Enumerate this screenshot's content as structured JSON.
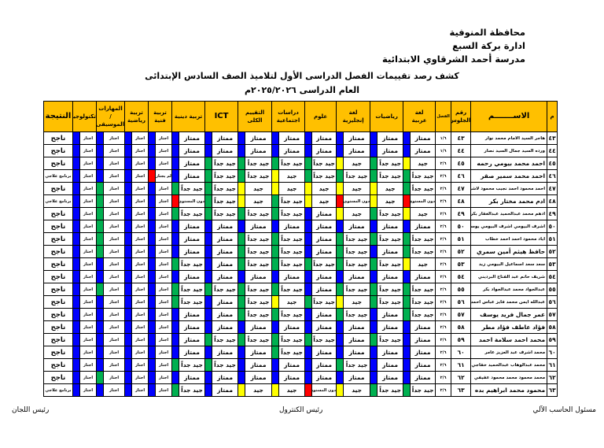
{
  "header": {
    "governorate": "محافظة المنوفية",
    "administration": "ادارة بركة السبع",
    "school": "مدرسة أحمد الشرقاوي الابتدائية"
  },
  "title": "كشف رصد تقييمات الفصل الدراسى الأول لتلاميذ الصف السادس الإبتدائى",
  "subtitle": "العام الدراسى ٢٠٢٥/٢٠٢٦م",
  "colors": {
    "b": "#0000FF",
    "g": "#00B050",
    "y": "#FFFF00",
    "r": "#FF0000",
    "header": "#FFC000"
  },
  "grade_colors": {
    "ممتاز": "b",
    "جيد جداً": "g",
    "جيد": "y",
    "دون المستوى": "r"
  },
  "columns": {
    "num": "م",
    "name": "الاســـــــم",
    "seat": "رقم\nالجلوس",
    "class": "الفصل",
    "arabic": "لغة\nعربية",
    "math": "رياضيات",
    "english": "لغة\nإنجليزية",
    "science": "علوم",
    "social": "دراسات\nاجتماعية",
    "overall": "التقييم\nالكلى",
    "ict": "ICT",
    "religion": "تربية دينية",
    "art": "تربية\nفنية",
    "pe": "تربية\nرياضية",
    "music": "المهارات /\nالموسيقى",
    "tech": "تكنولوجيا",
    "result": "النتيجة"
  },
  "rows": [
    {
      "num": "٤٣",
      "name": "هاجر السيد الامام محمد نوار",
      "seat": "٤٣",
      "class": "١/٦",
      "grades": [
        "ممتاز",
        "ممتاز",
        "ممتاز",
        "ممتاز",
        "ممتاز",
        "ممتاز",
        "ممتاز",
        "ممتاز"
      ],
      "activities": [
        "اجتاز",
        "اجتاز",
        "اجتاز",
        "اجتاز"
      ],
      "activity_colors": [
        "b",
        "b",
        "b",
        "b"
      ],
      "result": "ناجح"
    },
    {
      "num": "٤٤",
      "name": "ورده السيد جمال السيد نصار",
      "seat": "٤٤",
      "class": "١/٦",
      "grades": [
        "ممتاز",
        "ممتاز",
        "ممتاز",
        "ممتاز",
        "ممتاز",
        "ممتاز",
        "ممتاز",
        "ممتاز"
      ],
      "activities": [
        "اجتاز",
        "اجتاز",
        "اجتاز",
        "اجتاز"
      ],
      "activity_colors": [
        "b",
        "b",
        "b",
        "b"
      ],
      "result": "ناجح"
    },
    {
      "num": "٤٥",
      "name": "احمد محمد بيومي رحمه",
      "seat": "٤٥",
      "class": "٢/٦",
      "grades": [
        "جيد",
        "جيد جداً",
        "جيد",
        "جيد جداً",
        "جيد جداً",
        "جيد جداً",
        "جيد جداً",
        "ممتاز"
      ],
      "activities": [
        "اجتاز",
        "اجتاز",
        "اجتاز",
        "اجتاز"
      ],
      "activity_colors": [
        "b",
        "b",
        "b",
        "b"
      ],
      "result": "ناجح"
    },
    {
      "num": "٤٦",
      "name": "احمد محمد سمير صقر",
      "seat": "٤٦",
      "class": "٢/٦",
      "grades": [
        "جيد جداً",
        "جيد جداً",
        "جيد جداً",
        "جيد جداً",
        "جيد",
        "جيد جداً",
        "جيد جداً",
        "ممتاز"
      ],
      "activities": [
        "لم يجتاز",
        "اجتاز",
        "اجتاز",
        "اجتاز"
      ],
      "activity_colors": [
        "r",
        "b",
        "b",
        "b"
      ],
      "result": "برنامج علاجي"
    },
    {
      "num": "٤٧",
      "name": "احمد محمود احمد نجيب محمود لاشين",
      "seat": "٤٧",
      "class": "٢/٦",
      "grades": [
        "جيد جداً",
        "جيد",
        "جيد",
        "جيد",
        "جيد",
        "جيد",
        "جيد جداً",
        "جيد جداً"
      ],
      "activities": [
        "اجتاز",
        "اجتاز",
        "اجتاز",
        "اجتاز"
      ],
      "activity_colors": [
        "b",
        "b",
        "g",
        "b"
      ],
      "result": "ناجح"
    },
    {
      "num": "٤٨",
      "name": "ادم محمد مختار بكر",
      "seat": "٤٨",
      "class": "٢/٦",
      "grades": [
        "دون المستوى",
        "جيد",
        "دون المستوى",
        "جيد",
        "جيد جداً",
        "جيد",
        "جيد جداً",
        "دون المستوى"
      ],
      "activities": [
        "اجتاز",
        "اجتاز",
        "اجتاز",
        "اجتاز"
      ],
      "activity_colors": [
        "b",
        "b",
        "g",
        "b"
      ],
      "result": "برنامج علاجي"
    },
    {
      "num": "٤٩",
      "name": "ادهم محمد عبدالحميد عبدالغفار بكر",
      "seat": "٤٩",
      "class": "٢/٦",
      "grades": [
        "جيد",
        "جيد جداً",
        "جيد",
        "ممتاز",
        "جيد جداً",
        "جيد جداً",
        "جيد جداً",
        "جيد جداً"
      ],
      "activities": [
        "اجتاز",
        "اجتاز",
        "اجتاز",
        "اجتاز"
      ],
      "activity_colors": [
        "b",
        "b",
        "g",
        "b"
      ],
      "result": "ناجح"
    },
    {
      "num": "٥٠",
      "name": "اشرف البيومي اشرف البيومي يوسف",
      "seat": "٥٠",
      "class": "٢/٦",
      "grades": [
        "ممتاز",
        "ممتاز",
        "ممتاز",
        "ممتاز",
        "ممتاز",
        "ممتاز",
        "ممتاز",
        "ممتاز"
      ],
      "activities": [
        "اجتاز",
        "اجتاز",
        "اجتاز",
        "اجتاز"
      ],
      "activity_colors": [
        "b",
        "b",
        "g",
        "b"
      ],
      "result": "ناجح"
    },
    {
      "num": "٥١",
      "name": "اياد محمود احمد احمد خطاب",
      "seat": "٥١",
      "class": "٢/٦",
      "grades": [
        "جيد جداً",
        "جيد جداً",
        "جيد جداً",
        "ممتاز",
        "جيد جداً",
        "جيد جداً",
        "ممتاز",
        "ممتاز"
      ],
      "activities": [
        "اجتاز",
        "اجتاز",
        "اجتاز",
        "اجتاز"
      ],
      "activity_colors": [
        "b",
        "b",
        "g",
        "b"
      ],
      "result": "ناجح"
    },
    {
      "num": "٥٢",
      "name": "حافظ هيثم أمين سمري",
      "seat": "٥٢",
      "class": "٢/٦",
      "grades": [
        "جيد جداً",
        "ممتاز",
        "جيد جداً",
        "ممتاز",
        "جيد جداً",
        "جيد جداً",
        "ممتاز",
        "ممتاز"
      ],
      "activities": [
        "اجتاز",
        "اجتاز",
        "اجتاز",
        "اجتاز"
      ],
      "activity_colors": [
        "b",
        "b",
        "g",
        "b"
      ],
      "result": "ناجح"
    },
    {
      "num": "٥٣",
      "name": "سعد سعد اسماعيل البيومي زيد",
      "seat": "٥٣",
      "class": "٢/٦",
      "grades": [
        "جيد",
        "جيد جداً",
        "جيد جداً",
        "جيد جداً",
        "جيد جداً",
        "جيد جداً",
        "ممتاز",
        "جيد جداً"
      ],
      "activities": [
        "اجتاز",
        "اجتاز",
        "اجتاز",
        "اجتاز"
      ],
      "activity_colors": [
        "b",
        "b",
        "b",
        "b"
      ],
      "result": "ناجح"
    },
    {
      "num": "٥٤",
      "name": "شريف حاتم عبد الفتاح البرديني",
      "seat": "٥٤",
      "class": "٢/٦",
      "grades": [
        "ممتاز",
        "ممتاز",
        "ممتاز",
        "ممتاز",
        "ممتاز",
        "ممتاز",
        "ممتاز",
        "ممتاز"
      ],
      "activities": [
        "اجتاز",
        "اجتاز",
        "اجتاز",
        "اجتاز"
      ],
      "activity_colors": [
        "b",
        "b",
        "b",
        "b"
      ],
      "result": "ناجح"
    },
    {
      "num": "٥٥",
      "name": "عبدالجواد محمد عبدالجواد بكر",
      "seat": "٥٥",
      "class": "٢/٦",
      "grades": [
        "جيد جداً",
        "جيد جداً",
        "جيد جداً",
        "ممتاز",
        "جيد جداً",
        "جيد جداً",
        "جيد جداً",
        "جيد جداً"
      ],
      "activities": [
        "اجتاز",
        "اجتاز",
        "اجتاز",
        "اجتاز"
      ],
      "activity_colors": [
        "b",
        "b",
        "g",
        "b"
      ],
      "result": "ناجح"
    },
    {
      "num": "٥٦",
      "name": "عبدالله ايمن محمد فايز عباس احمد",
      "seat": "٥٦",
      "class": "٢/٦",
      "grades": [
        "جيد جداً",
        "جيد جداً",
        "جيد",
        "جيد جداً",
        "جيد",
        "جيد جداً",
        "ممتاز",
        "جيد جداً"
      ],
      "activities": [
        "اجتاز",
        "اجتاز",
        "اجتاز",
        "اجتاز"
      ],
      "activity_colors": [
        "b",
        "b",
        "b",
        "b"
      ],
      "result": "ناجح"
    },
    {
      "num": "٥٧",
      "name": "عمر جمال فريد يوسف",
      "seat": "٥٧",
      "class": "٢/٦",
      "grades": [
        "جيد جداً",
        "ممتاز",
        "جيد جداً",
        "ممتاز",
        "جيد جداً",
        "جيد جداً",
        "ممتاز",
        "ممتاز"
      ],
      "activities": [
        "اجتاز",
        "اجتاز",
        "اجتاز",
        "اجتاز"
      ],
      "activity_colors": [
        "b",
        "b",
        "b",
        "b"
      ],
      "result": "ناجح"
    },
    {
      "num": "٥٨",
      "name": "فؤاد عاطف فؤاد مطر",
      "seat": "٥٨",
      "class": "٢/٦",
      "grades": [
        "ممتاز",
        "ممتاز",
        "ممتاز",
        "ممتاز",
        "ممتاز",
        "ممتاز",
        "ممتاز",
        "ممتاز"
      ],
      "activities": [
        "اجتاز",
        "اجتاز",
        "اجتاز",
        "اجتاز"
      ],
      "activity_colors": [
        "b",
        "b",
        "b",
        "b"
      ],
      "result": "ناجح"
    },
    {
      "num": "٥٩",
      "name": "محمد احمد سلامة احمد",
      "seat": "٥٩",
      "class": "٢/٦",
      "grades": [
        "ممتاز",
        "جيد جداً",
        "ممتاز",
        "جيد جداً",
        "جيد جداً",
        "جيد جداً",
        "جيد جداً",
        "ممتاز"
      ],
      "activities": [
        "اجتاز",
        "اجتاز",
        "اجتاز",
        "اجتاز"
      ],
      "activity_colors": [
        "b",
        "b",
        "b",
        "b"
      ],
      "result": "ناجح"
    },
    {
      "num": "٦٠",
      "name": "محمد اشرف عبد العزيز عامر",
      "seat": "٦٠",
      "class": "٢/٦",
      "grades": [
        "ممتاز",
        "ممتاز",
        "ممتاز",
        "ممتاز",
        "جيد جداً",
        "ممتاز",
        "ممتاز",
        "ممتاز"
      ],
      "activities": [
        "اجتاز",
        "اجتاز",
        "اجتاز",
        "اجتاز"
      ],
      "activity_colors": [
        "b",
        "b",
        "b",
        "b"
      ],
      "result": "ناجح"
    },
    {
      "num": "٦١",
      "name": "محمد عبدالوهاب عبدالحميد خفاجي",
      "seat": "٦١",
      "class": "٢/٦",
      "grades": [
        "ممتاز",
        "ممتاز",
        "جيد جداً",
        "ممتاز",
        "ممتاز",
        "ممتاز",
        "جيد جداً",
        "جيد جداً"
      ],
      "activities": [
        "اجتاز",
        "اجتاز",
        "اجتاز",
        "اجتاز"
      ],
      "activity_colors": [
        "b",
        "b",
        "b",
        "b"
      ],
      "result": "ناجح"
    },
    {
      "num": "٦٢",
      "name": "محمد محمود محمد محمود عفيفي",
      "seat": "٦٢",
      "class": "٢/٦",
      "grades": [
        "ممتاز",
        "ممتاز",
        "ممتاز",
        "ممتاز",
        "ممتاز",
        "ممتاز",
        "ممتاز",
        "ممتاز"
      ],
      "activities": [
        "اجتاز",
        "اجتاز",
        "اجتاز",
        "اجتاز"
      ],
      "activity_colors": [
        "b",
        "b",
        "g",
        "b"
      ],
      "result": "ناجح"
    },
    {
      "num": "٦٣",
      "name": "محمود محمد ابراهيم بده",
      "seat": "٦٣",
      "class": "٢/٦",
      "grades": [
        "جيد جداً",
        "جيد جداً",
        "جيد",
        "دون المستوى",
        "جيد",
        "جيد",
        "ممتاز",
        "جيد جداً"
      ],
      "activities": [
        "اجتاز",
        "اجتاز",
        "اجتاز",
        "اجتاز"
      ],
      "activity_colors": [
        "b",
        "b",
        "b",
        "b"
      ],
      "result": "برنامج علاجي"
    }
  ],
  "footer": {
    "computer_officer": "مسئول الحاسب الآلي",
    "control_head": "رئيس الكنترول",
    "committees_head": "رئيس اللجان"
  }
}
